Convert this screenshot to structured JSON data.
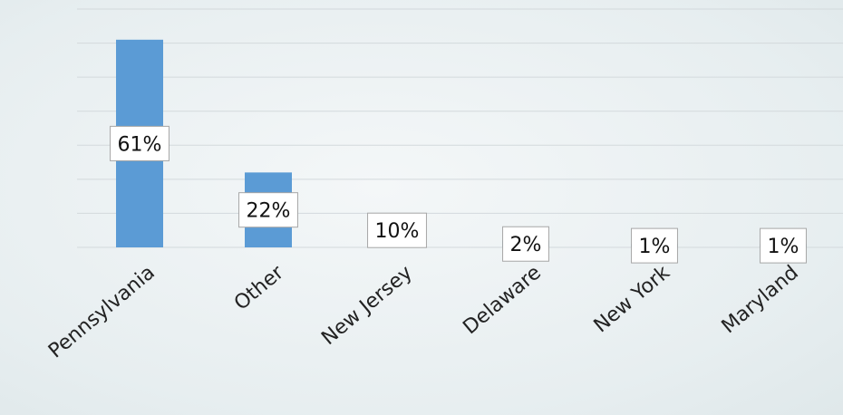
{
  "chart_data": {
    "type": "bar",
    "categories": [
      "Pennsylvania",
      "Other",
      "New Jersey",
      "Delaware",
      "New York",
      "Maryland"
    ],
    "values": [
      61,
      22,
      10,
      2,
      1,
      1
    ],
    "value_labels": [
      "61%",
      "22%",
      "10%",
      "2%",
      "1%",
      "1%"
    ],
    "color": "#5b9bd5",
    "ylim": [
      0,
      70
    ],
    "yticks": [
      0,
      10,
      20,
      30,
      40,
      50,
      60,
      70
    ],
    "grid": true
  }
}
